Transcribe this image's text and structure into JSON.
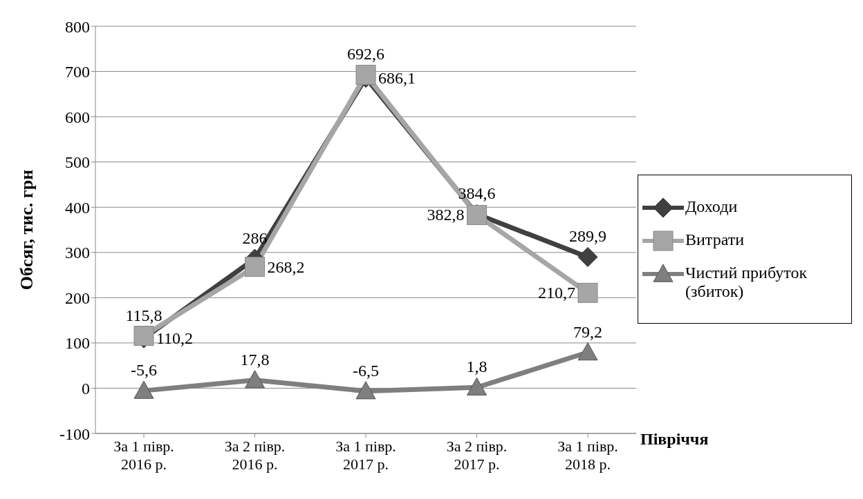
{
  "chart_data": {
    "type": "line",
    "xlabel": "Півріччя",
    "ylabel": "Обсяг, тис. грн",
    "categories": [
      "За 1 півр. 2016 р.",
      "За 2 півр. 2016 р.",
      "За 1 півр. 2017 р.",
      "За 2 півр. 2017 р.",
      "За 1 півр. 2018 р."
    ],
    "series": [
      {
        "name": "Доходи",
        "color": "#404040",
        "marker": "diamond",
        "values": [
          110.2,
          286,
          686.1,
          384.6,
          289.9
        ],
        "value_labels": [
          "110,2",
          "286",
          "686,1",
          "384,6",
          "289,9"
        ]
      },
      {
        "name": "Витрати",
        "color": "#a6a6a6",
        "marker": "square",
        "values": [
          115.8,
          268.2,
          692.6,
          382.8,
          210.7
        ],
        "value_labels": [
          "115,8",
          "268,2",
          "692,6",
          "382,8",
          "210,7"
        ]
      },
      {
        "name": "Чистий прибуток (збиток)",
        "color": "#7f7f7f",
        "marker": "triangle",
        "values": [
          -5.6,
          17.8,
          -6.5,
          1.8,
          79.2
        ],
        "value_labels": [
          "-5,6",
          "17,8",
          "-6,5",
          "1,8",
          "79,2"
        ]
      }
    ],
    "ylim": [
      -100,
      800
    ],
    "yticks": [
      -100,
      0,
      100,
      200,
      300,
      400,
      500,
      600,
      700,
      800
    ],
    "grid": "y",
    "legend": "right",
    "line_style": "solid"
  }
}
